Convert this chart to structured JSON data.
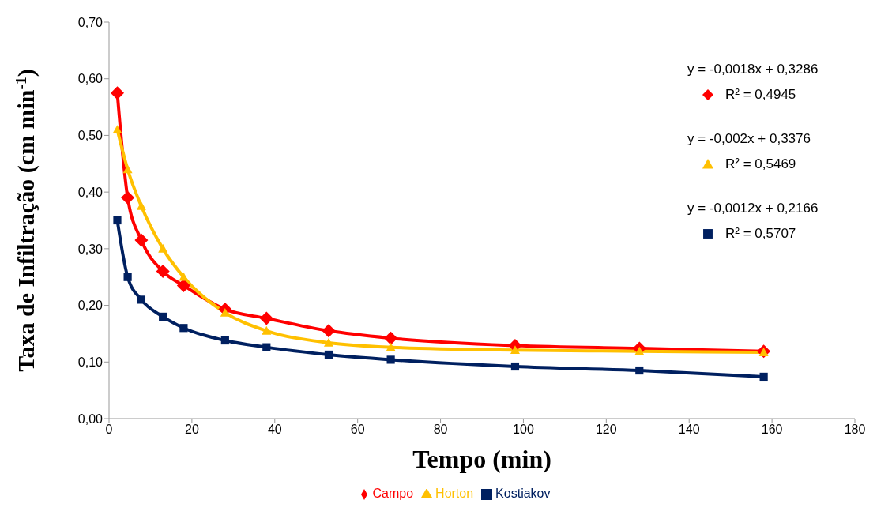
{
  "chart_data": {
    "type": "line",
    "xlabel": "Tempo (min)",
    "ylabel": "Taxa de Infiltração  (cm min$^{-1}$)",
    "xlim": [
      0,
      180
    ],
    "xticks": [
      0,
      20,
      40,
      60,
      80,
      100,
      120,
      140,
      160,
      180
    ],
    "ylim": [
      0,
      0.7
    ],
    "yticks": [
      {
        "value": 0,
        "label": "0,00"
      },
      {
        "value": 0.1,
        "label": "0,10"
      },
      {
        "value": 0.2,
        "label": "0,20"
      },
      {
        "value": 0.3,
        "label": "0,30"
      },
      {
        "value": 0.4,
        "label": "0,40"
      },
      {
        "value": 0.5,
        "label": "0,50"
      },
      {
        "value": 0.6,
        "label": "0,60"
      },
      {
        "value": 0.7,
        "label": "0,70"
      }
    ],
    "grid": false,
    "legend": "bottom",
    "line_style": "solid",
    "series": [
      {
        "name": "Campo",
        "color": "#ff0000",
        "marker": "diamond",
        "x": [
          2,
          4.5,
          7.8,
          13,
          18,
          28,
          38,
          53,
          68,
          98,
          128,
          158
        ],
        "values": [
          0.575,
          0.39,
          0.315,
          0.26,
          0.235,
          0.193,
          0.177,
          0.155,
          0.142,
          0.129,
          0.124,
          0.119
        ]
      },
      {
        "name": "Horton",
        "color": "#ffc000",
        "marker": "triangle",
        "x": [
          2,
          4.5,
          7.8,
          13,
          18,
          28,
          38,
          53,
          68,
          98,
          128,
          158
        ],
        "values": [
          0.51,
          0.44,
          0.375,
          0.3,
          0.25,
          0.187,
          0.155,
          0.134,
          0.126,
          0.121,
          0.119,
          0.117
        ]
      },
      {
        "name": "Kostiakov",
        "color": "#002060",
        "marker": "square",
        "x": [
          2,
          4.5,
          7.8,
          13,
          18,
          28,
          38,
          53,
          68,
          98,
          128,
          158
        ],
        "values": [
          0.35,
          0.25,
          0.21,
          0.18,
          0.16,
          0.138,
          0.126,
          0.113,
          0.104,
          0.092,
          0.085,
          0.074
        ]
      }
    ],
    "annotations": [
      "y = -0,0018x + 0,3286",
      "R² = 0,4945",
      "y = -0,002x + 0,3376",
      "R² = 0,5469",
      "y = -0,0012x + 0,2166",
      "R² = 0,5707"
    ]
  }
}
